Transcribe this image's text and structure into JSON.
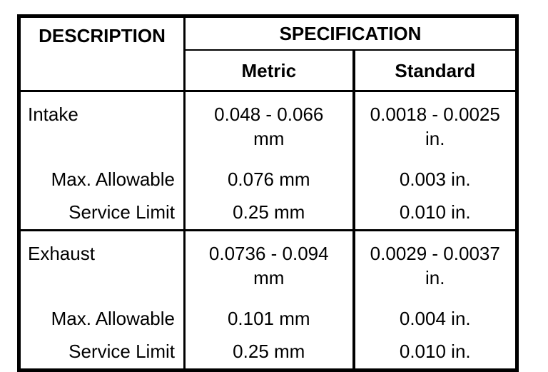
{
  "table": {
    "header": {
      "description": "DESCRIPTION",
      "specification": "SPECIFICATION",
      "metric": "Metric",
      "standard": "Standard"
    },
    "groups": [
      {
        "name": "Intake",
        "metric_range": "0.048 - 0.066",
        "metric_unit": "mm",
        "standard_range": "0.0018 - 0.0025",
        "standard_unit": "in.",
        "rows": [
          {
            "label": "Max. Allowable",
            "metric": "0.076 mm",
            "standard": "0.003 in."
          },
          {
            "label": "Service Limit",
            "metric": "0.25 mm",
            "standard": "0.010 in."
          }
        ]
      },
      {
        "name": "Exhaust",
        "metric_range": "0.0736 - 0.094",
        "metric_unit": "mm",
        "standard_range": "0.0029 - 0.0037",
        "standard_unit": "in.",
        "rows": [
          {
            "label": "Max. Allowable",
            "metric": "0.101 mm",
            "standard": "0.004 in."
          },
          {
            "label": "Service Limit",
            "metric": "0.25 mm",
            "standard": "0.010 in."
          }
        ]
      }
    ],
    "colors": {
      "border": "#000000",
      "text": "#000000",
      "background": "#ffffff"
    }
  }
}
